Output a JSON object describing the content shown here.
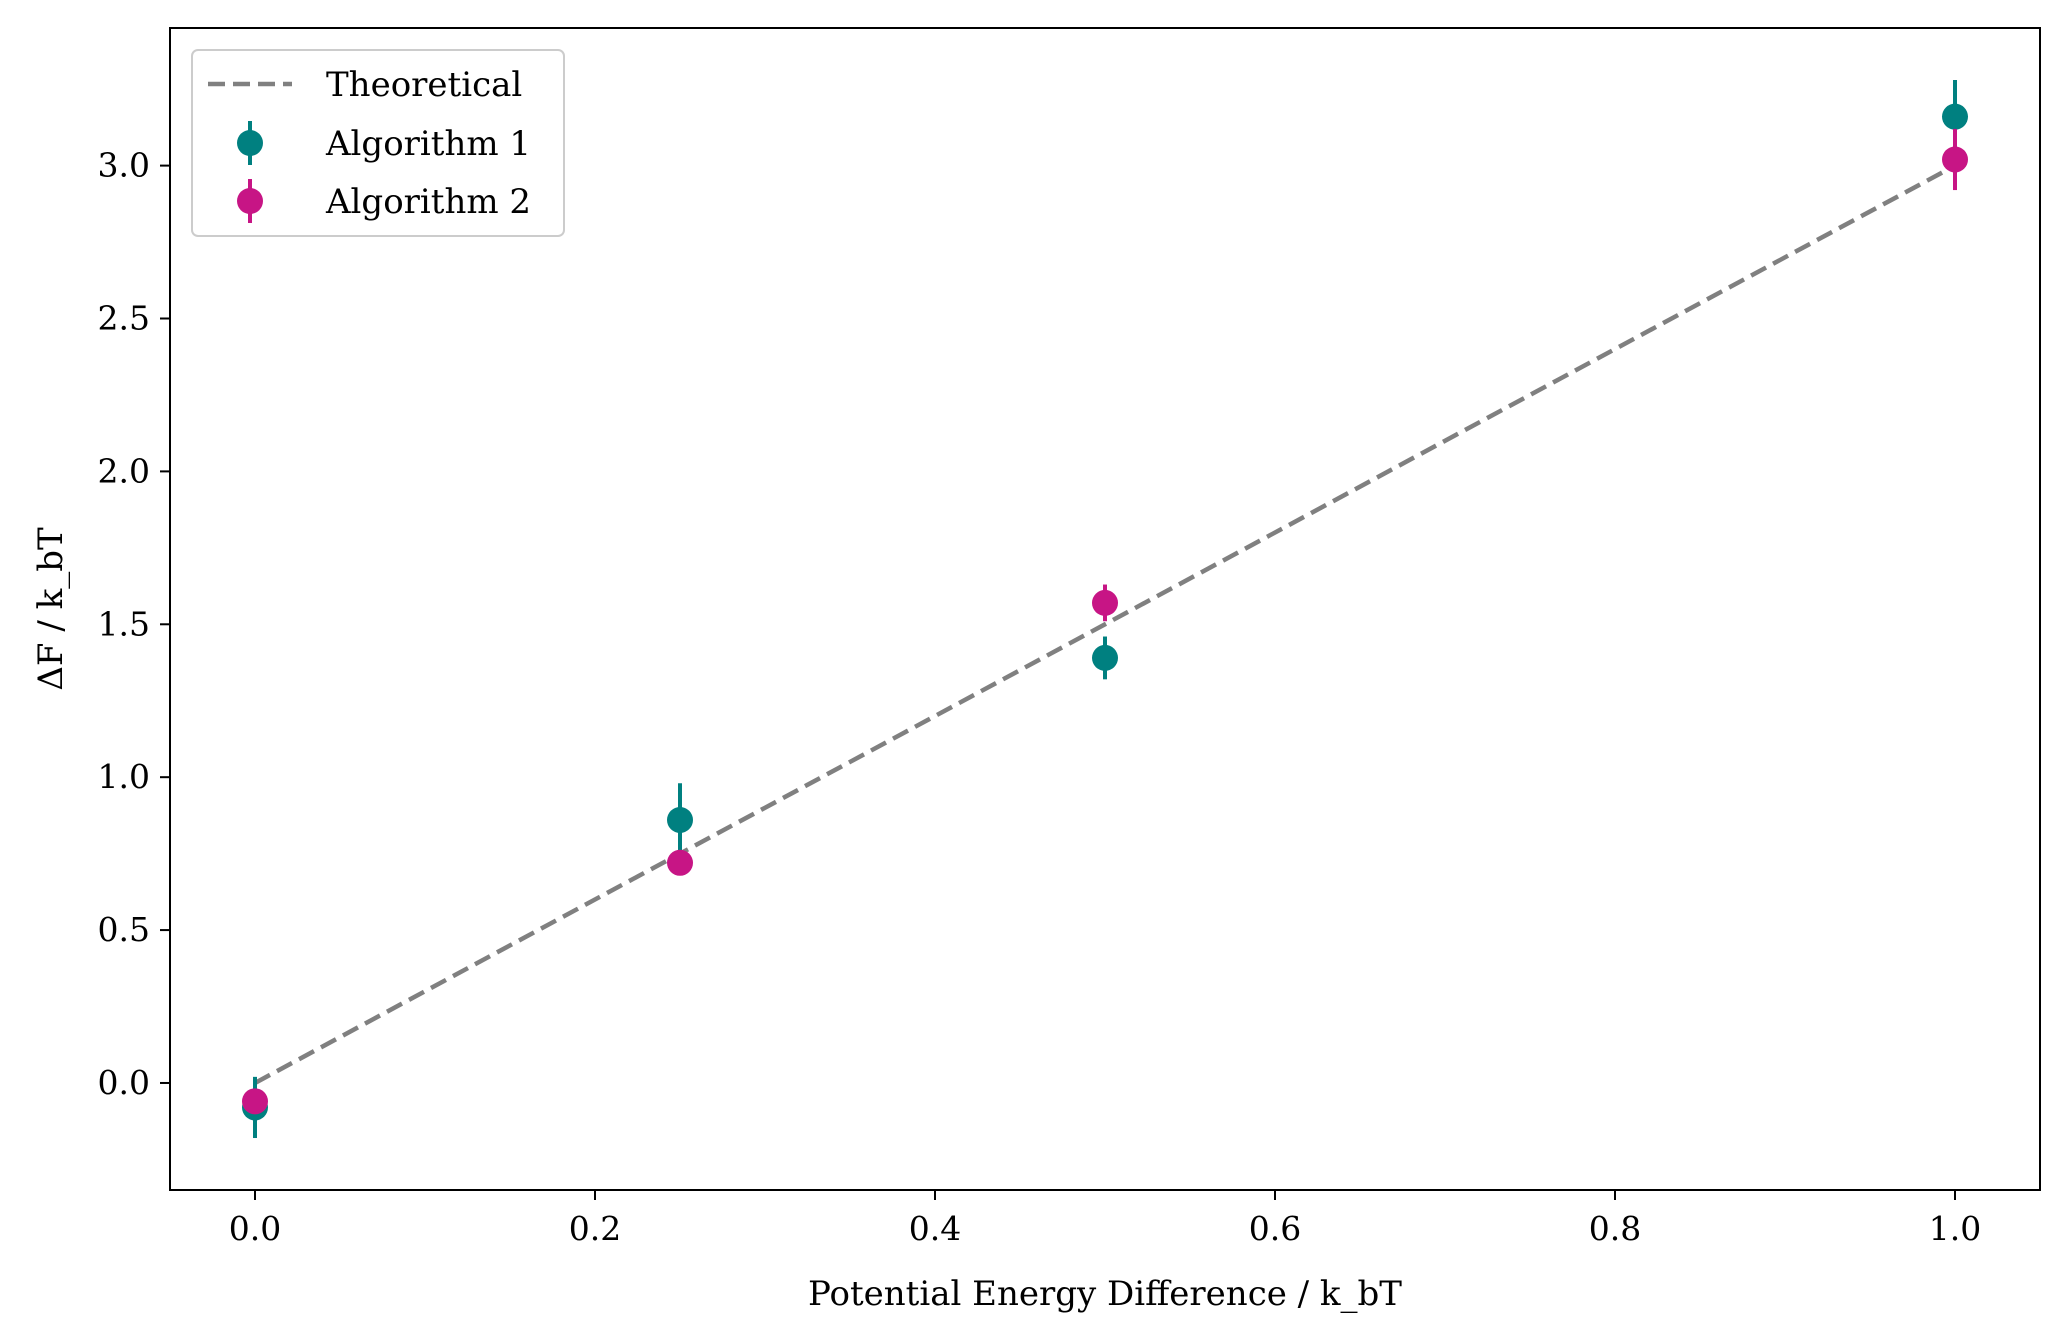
{
  "chart_data": {
    "type": "scatter",
    "title": "",
    "xlabel": "Potential Energy Difference / k_bT",
    "ylabel": "ΔF / k_bT",
    "xlim": [
      -0.05,
      1.05
    ],
    "ylim": [
      -0.35,
      3.45
    ],
    "x_ticks": [
      0.0,
      0.2,
      0.4,
      0.6,
      0.8,
      1.0
    ],
    "x_tick_labels": [
      "0.0",
      "0.2",
      "0.4",
      "0.6",
      "0.8",
      "1.0"
    ],
    "y_ticks": [
      0.0,
      0.5,
      1.0,
      1.5,
      2.0,
      2.5,
      3.0
    ],
    "y_tick_labels": [
      "0.0",
      "0.5",
      "1.0",
      "1.5",
      "2.0",
      "2.5",
      "3.0"
    ],
    "grid": false,
    "legend_position": "upper-left",
    "theoretical": {
      "name": "Theoretical",
      "color": "#808080",
      "style": "dashed",
      "x": [
        0.0,
        1.0
      ],
      "y": [
        0.0,
        3.0
      ]
    },
    "series": [
      {
        "name": "Algorithm 1",
        "color": "#008080",
        "x": [
          0.0,
          0.25,
          0.5,
          1.0
        ],
        "y": [
          -0.08,
          0.86,
          1.39,
          3.16
        ],
        "yerr": [
          0.1,
          0.12,
          0.07,
          0.12
        ]
      },
      {
        "name": "Algorithm 2",
        "color": "#c71585",
        "x": [
          0.0,
          0.25,
          0.5,
          1.0
        ],
        "y": [
          -0.06,
          0.72,
          1.57,
          3.02
        ],
        "yerr": [
          0.04,
          0.04,
          0.06,
          0.1
        ]
      }
    ]
  }
}
